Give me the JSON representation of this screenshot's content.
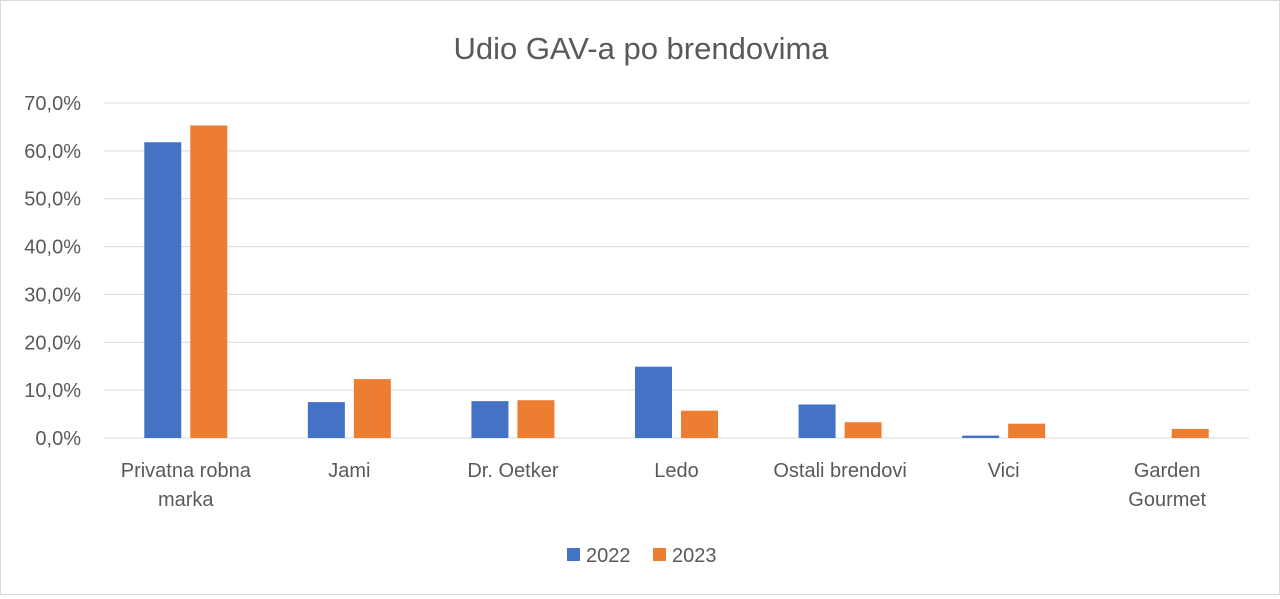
{
  "chart_data": {
    "type": "bar",
    "title": "Udio GAV-a po brendovima",
    "xlabel": "",
    "ylabel": "",
    "ylim": [
      0,
      70
    ],
    "yticks": [
      "0,0%",
      "10,0%",
      "20,0%",
      "30,0%",
      "40,0%",
      "50,0%",
      "60,0%",
      "70,0%"
    ],
    "categories": [
      [
        "Privatna robna",
        "marka"
      ],
      [
        "Jami"
      ],
      [
        "Dr. Oetker"
      ],
      [
        "Ledo"
      ],
      [
        "Ostali brendovi"
      ],
      [
        "Vici"
      ],
      [
        "Garden",
        "Gourmet"
      ]
    ],
    "series": [
      {
        "name": "2022",
        "color": "#4472c4",
        "values": [
          61.8,
          7.5,
          7.7,
          14.9,
          7.0,
          0.5,
          0.0
        ]
      },
      {
        "name": "2023",
        "color": "#ed7d31",
        "values": [
          65.3,
          12.3,
          7.9,
          5.7,
          3.3,
          3.0,
          1.9
        ]
      }
    ],
    "grid": true,
    "legend_position": "bottom"
  }
}
